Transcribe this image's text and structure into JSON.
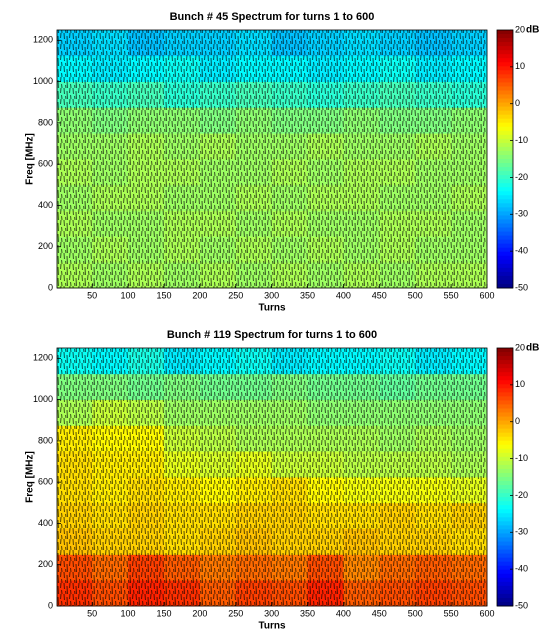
{
  "chart_data": [
    {
      "type": "heatmap",
      "title": "Bunch # 45 Spectrum for turns 1 to 600",
      "x_label": "Turns",
      "y_label": "Freq [MHz]",
      "colorbar_label": "dB",
      "colormap": "jet",
      "x_edges": [
        1,
        50,
        100,
        150,
        200,
        250,
        300,
        350,
        400,
        450,
        500,
        550,
        600
      ],
      "y_edges": [
        0,
        125,
        250,
        375,
        500,
        625,
        750,
        875,
        1000,
        1125,
        1250
      ],
      "values": [
        [
          -12,
          -13,
          -12,
          -13,
          -12,
          -13,
          -12,
          -13,
          -12,
          -13,
          -12,
          -12
        ],
        [
          -13,
          -12,
          -13,
          -12,
          -13,
          -12,
          -13,
          -12,
          -13,
          -12,
          -13,
          -13
        ],
        [
          -12,
          -13,
          -13,
          -12,
          -12,
          -13,
          -12,
          -13,
          -13,
          -12,
          -12,
          -13
        ],
        [
          -13,
          -12,
          -12,
          -13,
          -13,
          -12,
          -13,
          -12,
          -12,
          -13,
          -13,
          -12
        ],
        [
          -12,
          -13,
          -12,
          -12,
          -13,
          -13,
          -12,
          -13,
          -12,
          -12,
          -13,
          -13
        ],
        [
          -13,
          -13,
          -12,
          -13,
          -12,
          -13,
          -13,
          -12,
          -13,
          -13,
          -12,
          -13
        ],
        [
          -14,
          -15,
          -14,
          -14,
          -15,
          -14,
          -15,
          -15,
          -14,
          -15,
          -15,
          -14
        ],
        [
          -19,
          -20,
          -19,
          -21,
          -20,
          -19,
          -20,
          -21,
          -20,
          -19,
          -20,
          -21
        ],
        [
          -24,
          -25,
          -24,
          -23,
          -25,
          -24,
          -24,
          -25,
          -24,
          -23,
          -25,
          -24
        ],
        [
          -27,
          -26,
          -28,
          -27,
          -27,
          -26,
          -28,
          -27,
          -26,
          -27,
          -28,
          -27
        ]
      ],
      "xlim": [
        1,
        600
      ],
      "xticks": [
        50,
        100,
        150,
        200,
        250,
        300,
        350,
        400,
        450,
        500,
        550,
        600
      ],
      "ylim": [
        0,
        1250
      ],
      "yticks": [
        0,
        200,
        400,
        600,
        800,
        1000,
        1200
      ],
      "clim": [
        -50,
        20
      ],
      "cticks": [
        20,
        10,
        0,
        -10,
        -20,
        -30,
        -40,
        -50
      ]
    },
    {
      "type": "heatmap",
      "title": "Bunch # 119 Spectrum for turns 1 to 600",
      "x_label": "Turns",
      "y_label": "Freq [MHz]",
      "colorbar_label": "dB",
      "colormap": "jet",
      "x_edges": [
        1,
        50,
        100,
        150,
        200,
        250,
        300,
        350,
        400,
        450,
        500,
        550,
        600
      ],
      "y_edges": [
        0,
        125,
        250,
        375,
        500,
        625,
        750,
        875,
        1000,
        1125,
        1250
      ],
      "values": [
        [
          8,
          6,
          9,
          8,
          5,
          7,
          6,
          9,
          5,
          6,
          7,
          6
        ],
        [
          6,
          4,
          7,
          5,
          3,
          4,
          3,
          6,
          2,
          4,
          5,
          4
        ],
        [
          -2,
          -3,
          -3,
          -4,
          -3,
          -2,
          -3,
          -3,
          -2,
          -3,
          -3,
          -4
        ],
        [
          -3,
          -4,
          -3,
          -4,
          -4,
          -3,
          -3,
          -4,
          -4,
          -3,
          -4,
          -3
        ],
        [
          -4,
          -5,
          -4,
          -5,
          -6,
          -5,
          -4,
          -6,
          -7,
          -7,
          -7,
          -8
        ],
        [
          -4,
          -5,
          -5,
          -8,
          -9,
          -8,
          -10,
          -10,
          -11,
          -11,
          -11,
          -12
        ],
        [
          -5,
          -6,
          -6,
          -10,
          -11,
          -12,
          -12,
          -12,
          -12,
          -13,
          -12,
          -13
        ],
        [
          -12,
          -10,
          -11,
          -13,
          -13,
          -13,
          -13,
          -14,
          -14,
          -14,
          -14,
          -14
        ],
        [
          -15,
          -15,
          -16,
          -15,
          -16,
          -16,
          -15,
          -16,
          -16,
          -17,
          -16,
          -16
        ],
        [
          -23,
          -24,
          -22,
          -25,
          -24,
          -23,
          -25,
          -24,
          -24,
          -23,
          -25,
          -24
        ]
      ],
      "xlim": [
        1,
        600
      ],
      "xticks": [
        50,
        100,
        150,
        200,
        250,
        300,
        350,
        400,
        450,
        500,
        550,
        600
      ],
      "ylim": [
        0,
        1250
      ],
      "yticks": [
        0,
        200,
        400,
        600,
        800,
        1000,
        1200
      ],
      "clim": [
        -50,
        20
      ],
      "cticks": [
        20,
        10,
        0,
        -10,
        -20,
        -30,
        -40,
        -50
      ]
    }
  ]
}
